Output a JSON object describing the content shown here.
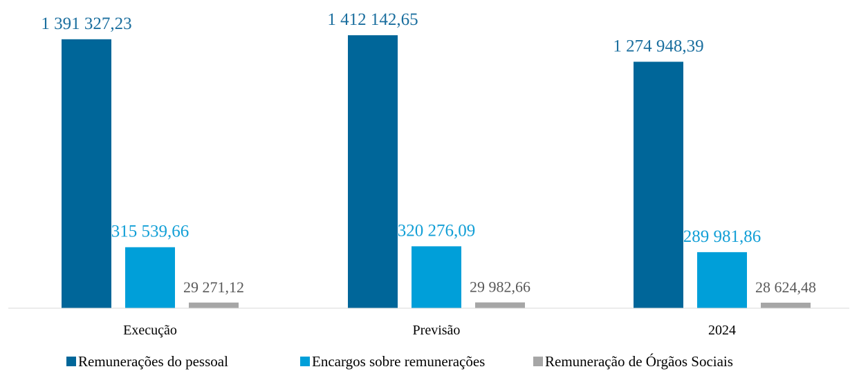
{
  "chart_data": {
    "type": "bar",
    "categories": [
      "Execução",
      "Previsão",
      "2024"
    ],
    "series": [
      {
        "name": "Remunerações do pessoal",
        "values": [
          1391327.23,
          1412142.65,
          1274948.39
        ],
        "labels": [
          "1 391 327,23",
          "1 412 142,65",
          "1 274 948,39"
        ],
        "color": "#006699",
        "label_color": "#1a6e9e"
      },
      {
        "name": "Encargos sobre remunerações",
        "values": [
          315539.66,
          320276.09,
          289981.86
        ],
        "labels": [
          "315 539,66",
          "320 276,09",
          "289 981,86"
        ],
        "color": "#009fd9",
        "label_color": "#129fd6"
      },
      {
        "name": "Remuneração de Órgãos Sociais",
        "values": [
          29271.12,
          29982.66,
          28624.48
        ],
        "labels": [
          "29 271,12",
          "29 982,66",
          "28 624,48"
        ],
        "color": "#a6a6a6",
        "label_color": "#595959"
      }
    ],
    "title": "",
    "xlabel": "",
    "ylabel": "",
    "ylim": [
      0,
      1412142.65
    ],
    "grid": false,
    "y_axis_visible": false,
    "legend_position": "bottom"
  }
}
